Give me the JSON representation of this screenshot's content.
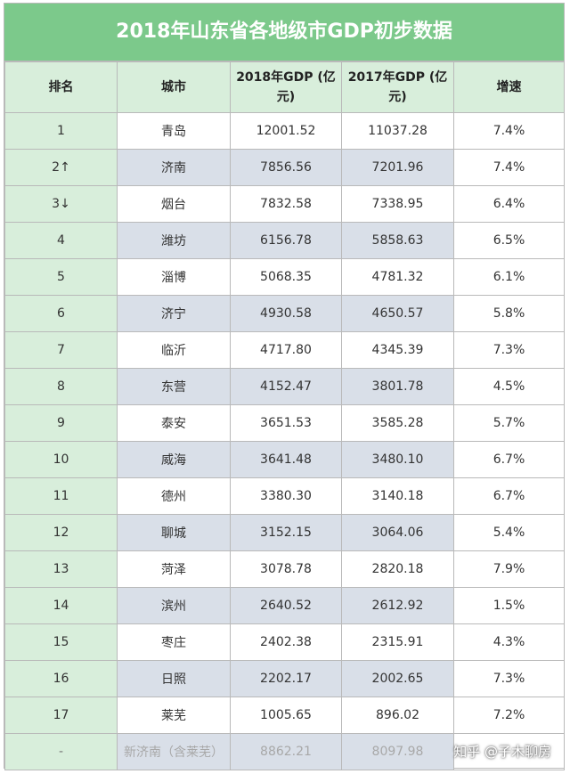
{
  "title": "2018年山东省各地级市GDP初步数据",
  "headers": {
    "rank": "排名",
    "city": "城市",
    "gdp2018_line1": "2018年GDP",
    "gdp2018_line2": "(亿元)",
    "gdp2017_line1": "2017年GDP",
    "gdp2017_line2": "(亿元)",
    "growth": "增速"
  },
  "rows": [
    {
      "rank": "1",
      "city": "青岛",
      "gdp2018": "12001.52",
      "gdp2017": "11037.28",
      "growth": "7.4%"
    },
    {
      "rank": "2↑",
      "city": "济南",
      "gdp2018": "7856.56",
      "gdp2017": "7201.96",
      "growth": "7.4%"
    },
    {
      "rank": "3↓",
      "city": "烟台",
      "gdp2018": "7832.58",
      "gdp2017": "7338.95",
      "growth": "6.4%"
    },
    {
      "rank": "4",
      "city": "潍坊",
      "gdp2018": "6156.78",
      "gdp2017": "5858.63",
      "growth": "6.5%"
    },
    {
      "rank": "5",
      "city": "淄博",
      "gdp2018": "5068.35",
      "gdp2017": "4781.32",
      "growth": "6.1%"
    },
    {
      "rank": "6",
      "city": "济宁",
      "gdp2018": "4930.58",
      "gdp2017": "4650.57",
      "growth": "5.8%"
    },
    {
      "rank": "7",
      "city": "临沂",
      "gdp2018": "4717.80",
      "gdp2017": "4345.39",
      "growth": "7.3%"
    },
    {
      "rank": "8",
      "city": "东营",
      "gdp2018": "4152.47",
      "gdp2017": "3801.78",
      "growth": "4.5%"
    },
    {
      "rank": "9",
      "city": "泰安",
      "gdp2018": "3651.53",
      "gdp2017": "3585.28",
      "growth": "5.7%"
    },
    {
      "rank": "10",
      "city": "威海",
      "gdp2018": "3641.48",
      "gdp2017": "3480.10",
      "growth": "6.7%"
    },
    {
      "rank": "11",
      "city": "德州",
      "gdp2018": "3380.30",
      "gdp2017": "3140.18",
      "growth": "6.7%"
    },
    {
      "rank": "12",
      "city": "聊城",
      "gdp2018": "3152.15",
      "gdp2017": "3064.06",
      "growth": "5.4%"
    },
    {
      "rank": "13",
      "city": "菏泽",
      "gdp2018": "3078.78",
      "gdp2017": "2820.18",
      "growth": "7.9%"
    },
    {
      "rank": "14",
      "city": "滨州",
      "gdp2018": "2640.52",
      "gdp2017": "2612.92",
      "growth": "1.5%"
    },
    {
      "rank": "15",
      "city": "枣庄",
      "gdp2018": "2402.38",
      "gdp2017": "2315.91",
      "growth": "4.3%"
    },
    {
      "rank": "16",
      "city": "日照",
      "gdp2018": "2202.17",
      "gdp2017": "2002.65",
      "growth": "7.3%"
    },
    {
      "rank": "17",
      "city": "莱芜",
      "gdp2018": "1005.65",
      "gdp2017": "896.02",
      "growth": "7.2%"
    }
  ],
  "footer_row": {
    "rank": "-",
    "city": "新济南（含莱芜）",
    "gdp2018": "8862.21",
    "gdp2017": "8097.98",
    "growth": ""
  },
  "watermark": "知乎 @子木聊房",
  "colors": {
    "title_bar": "#7cc98b",
    "header_bg": "#d8eedb",
    "stripe_bg": "#d9dfe8",
    "border": "#b9b9b9"
  }
}
